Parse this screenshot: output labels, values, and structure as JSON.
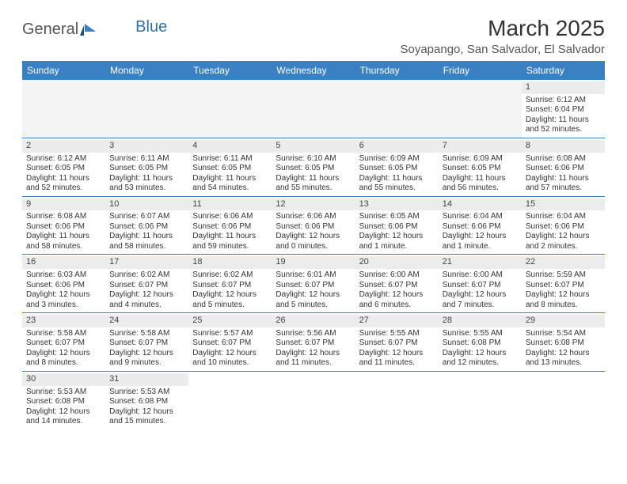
{
  "logo": {
    "text_part1": "General",
    "text_part2": "Blue"
  },
  "title": "March 2025",
  "location": "Soyapango, San Salvador, El Salvador",
  "colors": {
    "header_bg": "#3a80c3",
    "header_text": "#ffffff",
    "rule": "#3a80c3",
    "daybar_bg": "#ececec",
    "empty_bg": "#f4f4f4",
    "body_text": "#333333"
  },
  "calendar": {
    "weekdays": [
      "Sunday",
      "Monday",
      "Tuesday",
      "Wednesday",
      "Thursday",
      "Friday",
      "Saturday"
    ],
    "weeks": [
      [
        {
          "empty": true
        },
        {
          "empty": true
        },
        {
          "empty": true
        },
        {
          "empty": true
        },
        {
          "empty": true
        },
        {
          "empty": true
        },
        {
          "day": "1",
          "sunrise": "Sunrise: 6:12 AM",
          "sunset": "Sunset: 6:04 PM",
          "daylight1": "Daylight: 11 hours",
          "daylight2": "and 52 minutes."
        }
      ],
      [
        {
          "day": "2",
          "sunrise": "Sunrise: 6:12 AM",
          "sunset": "Sunset: 6:05 PM",
          "daylight1": "Daylight: 11 hours",
          "daylight2": "and 52 minutes."
        },
        {
          "day": "3",
          "sunrise": "Sunrise: 6:11 AM",
          "sunset": "Sunset: 6:05 PM",
          "daylight1": "Daylight: 11 hours",
          "daylight2": "and 53 minutes."
        },
        {
          "day": "4",
          "sunrise": "Sunrise: 6:11 AM",
          "sunset": "Sunset: 6:05 PM",
          "daylight1": "Daylight: 11 hours",
          "daylight2": "and 54 minutes."
        },
        {
          "day": "5",
          "sunrise": "Sunrise: 6:10 AM",
          "sunset": "Sunset: 6:05 PM",
          "daylight1": "Daylight: 11 hours",
          "daylight2": "and 55 minutes."
        },
        {
          "day": "6",
          "sunrise": "Sunrise: 6:09 AM",
          "sunset": "Sunset: 6:05 PM",
          "daylight1": "Daylight: 11 hours",
          "daylight2": "and 55 minutes."
        },
        {
          "day": "7",
          "sunrise": "Sunrise: 6:09 AM",
          "sunset": "Sunset: 6:05 PM",
          "daylight1": "Daylight: 11 hours",
          "daylight2": "and 56 minutes."
        },
        {
          "day": "8",
          "sunrise": "Sunrise: 6:08 AM",
          "sunset": "Sunset: 6:06 PM",
          "daylight1": "Daylight: 11 hours",
          "daylight2": "and 57 minutes."
        }
      ],
      [
        {
          "day": "9",
          "sunrise": "Sunrise: 6:08 AM",
          "sunset": "Sunset: 6:06 PM",
          "daylight1": "Daylight: 11 hours",
          "daylight2": "and 58 minutes."
        },
        {
          "day": "10",
          "sunrise": "Sunrise: 6:07 AM",
          "sunset": "Sunset: 6:06 PM",
          "daylight1": "Daylight: 11 hours",
          "daylight2": "and 58 minutes."
        },
        {
          "day": "11",
          "sunrise": "Sunrise: 6:06 AM",
          "sunset": "Sunset: 6:06 PM",
          "daylight1": "Daylight: 11 hours",
          "daylight2": "and 59 minutes."
        },
        {
          "day": "12",
          "sunrise": "Sunrise: 6:06 AM",
          "sunset": "Sunset: 6:06 PM",
          "daylight1": "Daylight: 12 hours",
          "daylight2": "and 0 minutes."
        },
        {
          "day": "13",
          "sunrise": "Sunrise: 6:05 AM",
          "sunset": "Sunset: 6:06 PM",
          "daylight1": "Daylight: 12 hours",
          "daylight2": "and 1 minute."
        },
        {
          "day": "14",
          "sunrise": "Sunrise: 6:04 AM",
          "sunset": "Sunset: 6:06 PM",
          "daylight1": "Daylight: 12 hours",
          "daylight2": "and 1 minute."
        },
        {
          "day": "15",
          "sunrise": "Sunrise: 6:04 AM",
          "sunset": "Sunset: 6:06 PM",
          "daylight1": "Daylight: 12 hours",
          "daylight2": "and 2 minutes."
        }
      ],
      [
        {
          "day": "16",
          "sunrise": "Sunrise: 6:03 AM",
          "sunset": "Sunset: 6:06 PM",
          "daylight1": "Daylight: 12 hours",
          "daylight2": "and 3 minutes."
        },
        {
          "day": "17",
          "sunrise": "Sunrise: 6:02 AM",
          "sunset": "Sunset: 6:07 PM",
          "daylight1": "Daylight: 12 hours",
          "daylight2": "and 4 minutes."
        },
        {
          "day": "18",
          "sunrise": "Sunrise: 6:02 AM",
          "sunset": "Sunset: 6:07 PM",
          "daylight1": "Daylight: 12 hours",
          "daylight2": "and 5 minutes."
        },
        {
          "day": "19",
          "sunrise": "Sunrise: 6:01 AM",
          "sunset": "Sunset: 6:07 PM",
          "daylight1": "Daylight: 12 hours",
          "daylight2": "and 5 minutes."
        },
        {
          "day": "20",
          "sunrise": "Sunrise: 6:00 AM",
          "sunset": "Sunset: 6:07 PM",
          "daylight1": "Daylight: 12 hours",
          "daylight2": "and 6 minutes."
        },
        {
          "day": "21",
          "sunrise": "Sunrise: 6:00 AM",
          "sunset": "Sunset: 6:07 PM",
          "daylight1": "Daylight: 12 hours",
          "daylight2": "and 7 minutes."
        },
        {
          "day": "22",
          "sunrise": "Sunrise: 5:59 AM",
          "sunset": "Sunset: 6:07 PM",
          "daylight1": "Daylight: 12 hours",
          "daylight2": "and 8 minutes."
        }
      ],
      [
        {
          "day": "23",
          "sunrise": "Sunrise: 5:58 AM",
          "sunset": "Sunset: 6:07 PM",
          "daylight1": "Daylight: 12 hours",
          "daylight2": "and 8 minutes."
        },
        {
          "day": "24",
          "sunrise": "Sunrise: 5:58 AM",
          "sunset": "Sunset: 6:07 PM",
          "daylight1": "Daylight: 12 hours",
          "daylight2": "and 9 minutes."
        },
        {
          "day": "25",
          "sunrise": "Sunrise: 5:57 AM",
          "sunset": "Sunset: 6:07 PM",
          "daylight1": "Daylight: 12 hours",
          "daylight2": "and 10 minutes."
        },
        {
          "day": "26",
          "sunrise": "Sunrise: 5:56 AM",
          "sunset": "Sunset: 6:07 PM",
          "daylight1": "Daylight: 12 hours",
          "daylight2": "and 11 minutes."
        },
        {
          "day": "27",
          "sunrise": "Sunrise: 5:55 AM",
          "sunset": "Sunset: 6:07 PM",
          "daylight1": "Daylight: 12 hours",
          "daylight2": "and 11 minutes."
        },
        {
          "day": "28",
          "sunrise": "Sunrise: 5:55 AM",
          "sunset": "Sunset: 6:08 PM",
          "daylight1": "Daylight: 12 hours",
          "daylight2": "and 12 minutes."
        },
        {
          "day": "29",
          "sunrise": "Sunrise: 5:54 AM",
          "sunset": "Sunset: 6:08 PM",
          "daylight1": "Daylight: 12 hours",
          "daylight2": "and 13 minutes."
        }
      ],
      [
        {
          "day": "30",
          "sunrise": "Sunrise: 5:53 AM",
          "sunset": "Sunset: 6:08 PM",
          "daylight1": "Daylight: 12 hours",
          "daylight2": "and 14 minutes."
        },
        {
          "day": "31",
          "sunrise": "Sunrise: 5:53 AM",
          "sunset": "Sunset: 6:08 PM",
          "daylight1": "Daylight: 12 hours",
          "daylight2": "and 15 minutes."
        },
        {
          "empty": true,
          "plain": true
        },
        {
          "empty": true,
          "plain": true
        },
        {
          "empty": true,
          "plain": true
        },
        {
          "empty": true,
          "plain": true
        },
        {
          "empty": true,
          "plain": true
        }
      ]
    ]
  }
}
